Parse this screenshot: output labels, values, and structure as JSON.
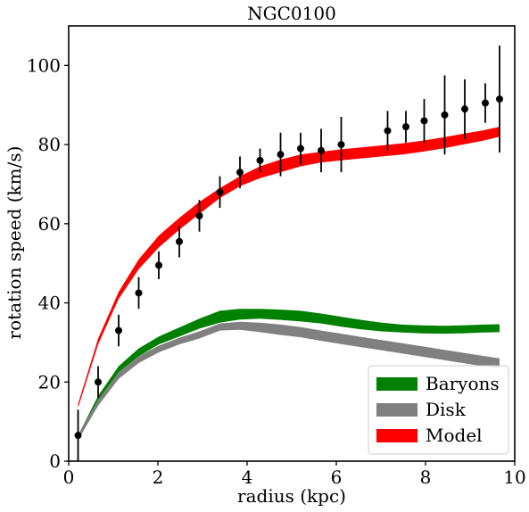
{
  "chart_data": {
    "type": "line",
    "title": "NGC0100",
    "xlabel": "radius (kpc)",
    "ylabel": "rotation speed (km/s)",
    "xlim": [
      0,
      10
    ],
    "ylim": [
      0,
      110
    ],
    "xticks": [
      0,
      2,
      4,
      6,
      8,
      10
    ],
    "yticks": [
      0,
      20,
      40,
      60,
      80,
      100
    ],
    "legend_position": "bottom-right",
    "grid": false,
    "bands": [
      {
        "name": "Baryons",
        "color": "#008000",
        "x": [
          0.21,
          0.66,
          1.12,
          1.57,
          2.02,
          2.48,
          2.93,
          3.39,
          3.84,
          4.29,
          4.75,
          5.2,
          5.66,
          6.11,
          6.56,
          7.02,
          7.47,
          7.93,
          8.38,
          8.83,
          9.29,
          9.66
        ],
        "lower": [
          5.5,
          15.0,
          22.5,
          26.5,
          29.5,
          31.5,
          33.5,
          35.0,
          35.8,
          36.0,
          35.7,
          35.3,
          34.8,
          34.0,
          33.3,
          32.8,
          32.5,
          32.3,
          32.2,
          32.3,
          32.5,
          32.6
        ],
        "upper": [
          6.5,
          16.5,
          24.0,
          28.5,
          31.5,
          33.8,
          36.0,
          38.0,
          38.5,
          38.5,
          38.3,
          38.0,
          37.3,
          36.5,
          35.7,
          35.0,
          34.5,
          34.3,
          34.2,
          34.3,
          34.5,
          34.6
        ]
      },
      {
        "name": "Disk",
        "color": "#808080",
        "x": [
          0.21,
          0.66,
          1.12,
          1.57,
          2.02,
          2.48,
          2.93,
          3.39,
          3.84,
          4.29,
          4.75,
          5.2,
          5.66,
          6.11,
          6.56,
          7.02,
          7.47,
          7.93,
          8.38,
          8.83,
          9.29,
          9.66
        ],
        "lower": [
          5.3,
          14.0,
          20.8,
          24.8,
          27.5,
          29.5,
          31.0,
          33.0,
          33.2,
          32.6,
          31.9,
          31.3,
          30.4,
          29.6,
          28.8,
          28.0,
          27.2,
          26.4,
          25.6,
          24.8,
          24.0,
          23.5
        ],
        "upper": [
          6.7,
          15.5,
          22.5,
          26.5,
          29.2,
          31.2,
          32.8,
          34.8,
          35.2,
          35.0,
          34.5,
          33.9,
          33.0,
          32.2,
          31.4,
          30.6,
          29.8,
          29.0,
          28.2,
          27.4,
          26.6,
          26.0
        ]
      },
      {
        "name": "Model",
        "color": "#ff0000",
        "x": [
          0.21,
          0.66,
          1.12,
          1.57,
          2.02,
          2.48,
          2.93,
          3.39,
          3.84,
          4.29,
          4.75,
          5.2,
          5.66,
          6.11,
          6.56,
          7.02,
          7.47,
          7.93,
          8.38,
          8.83,
          9.29,
          9.66
        ],
        "lower": [
          13.5,
          29.5,
          41.0,
          48.5,
          54.0,
          58.5,
          62.5,
          66.5,
          69.5,
          71.5,
          73.0,
          74.5,
          75.5,
          76.0,
          76.5,
          77.0,
          77.5,
          78.2,
          79.0,
          80.0,
          81.0,
          82.0
        ],
        "upper": [
          14.5,
          31.0,
          42.8,
          51.0,
          57.0,
          61.5,
          65.5,
          69.0,
          72.0,
          74.5,
          76.2,
          77.5,
          78.2,
          78.8,
          79.3,
          79.8,
          80.3,
          81.0,
          81.8,
          82.7,
          83.6,
          84.5
        ]
      }
    ],
    "observed": {
      "x": [
        0.21,
        0.66,
        1.12,
        1.57,
        2.02,
        2.48,
        2.93,
        3.39,
        3.84,
        4.29,
        4.75,
        5.2,
        5.66,
        6.11,
        7.15,
        7.56,
        7.97,
        8.43,
        8.88,
        9.34,
        9.66
      ],
      "y": [
        6.5,
        20.0,
        33.0,
        42.5,
        49.5,
        55.5,
        62.0,
        68.0,
        73.0,
        76.0,
        77.5,
        79.0,
        78.5,
        80.0,
        83.5,
        84.5,
        86.0,
        87.5,
        89.0,
        90.5,
        91.5
      ],
      "err": [
        6.5,
        4.0,
        4.0,
        4.0,
        3.5,
        4.0,
        4.0,
        4.0,
        4.0,
        3.0,
        5.5,
        4.0,
        5.5,
        7.0,
        5.0,
        4.0,
        5.5,
        10.0,
        7.5,
        5.0,
        13.5
      ]
    }
  }
}
